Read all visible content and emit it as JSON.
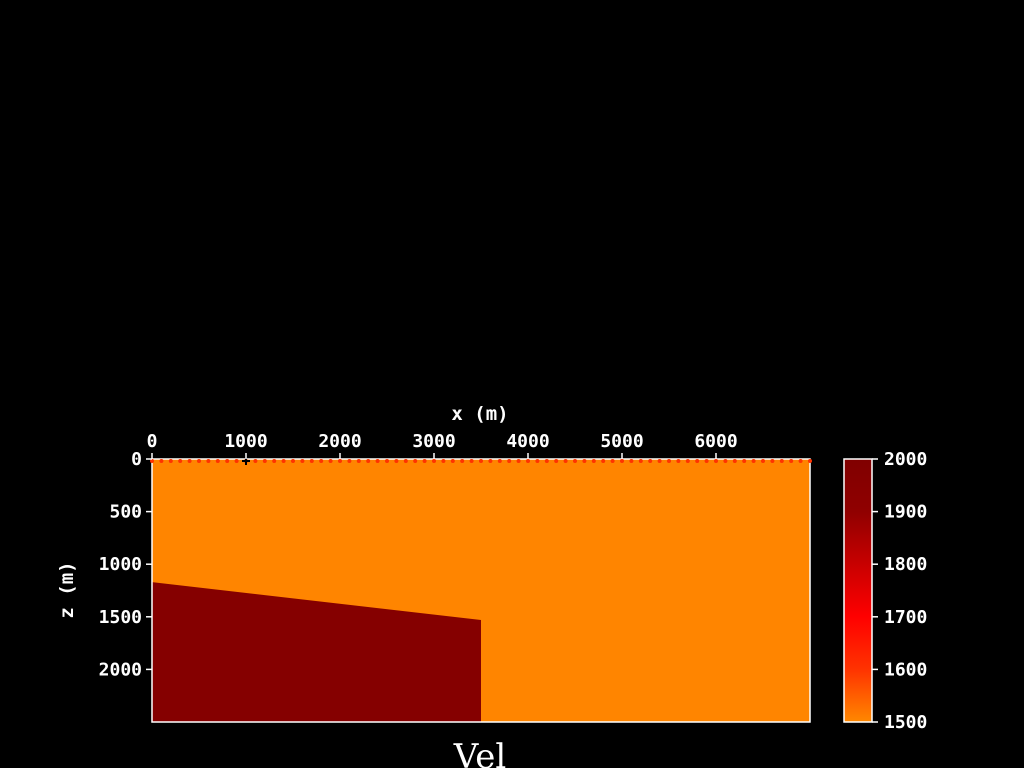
{
  "chart_data": {
    "type": "heatmap",
    "title": "Vel",
    "xlabel": "x (m)",
    "ylabel": "z (m)",
    "xlim": [
      0,
      7000
    ],
    "zlim": [
      2500,
      0
    ],
    "x_ticks": [
      "0",
      "1000",
      "2000",
      "3000",
      "4000",
      "5000",
      "6000"
    ],
    "z_ticks": [
      "0",
      "500",
      "1000",
      "1500",
      "2000"
    ],
    "colorbar": {
      "range": [
        1500,
        2000
      ],
      "ticks": [
        "2000",
        "1900",
        "1800",
        "1700",
        "1600",
        "1500"
      ],
      "colors": [
        "#ff8800",
        "#ff3300",
        "#ff0000",
        "#c80000",
        "#900000",
        "#800000"
      ]
    },
    "background_velocity": 1500,
    "regions": [
      {
        "velocity": 2000,
        "color": "#850000",
        "boundary": [
          [
            0,
            1170
          ],
          [
            3500,
            1530
          ],
          [
            3500,
            2500
          ],
          [
            0,
            2500
          ]
        ]
      }
    ],
    "background_color": "#ff8500",
    "markers": {
      "receivers": {
        "z": 0,
        "x_start": 0,
        "x_end": 7000,
        "spacing": 100,
        "color": "#ff3300"
      },
      "source": {
        "x": 1000,
        "z": 0,
        "symbol": "+"
      }
    },
    "grid": false
  }
}
